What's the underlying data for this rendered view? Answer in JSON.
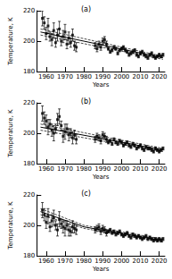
{
  "chart_data": [
    {
      "type": "scatter",
      "title": "(a)",
      "x_label": "Years",
      "y_label": "Temperature, K",
      "xlim": [
        1955,
        2023
      ],
      "xticks": [
        1960,
        1970,
        1980,
        1990,
        2000,
        2010,
        2020
      ],
      "ylim": [
        180,
        220
      ],
      "yticks": [
        180,
        200,
        220
      ],
      "series": [
        {
          "type": "scatter",
          "color": "#000000",
          "marker": "square",
          "x": [
            1958,
            1959,
            1960,
            1961,
            1962,
            1963,
            1964,
            1965,
            1966,
            1967,
            1968,
            1969,
            1970,
            1971,
            1972,
            1973,
            1974,
            1975,
            1976,
            1986,
            1987,
            1988,
            1989,
            1990,
            1991,
            1992,
            1993,
            1994,
            1995,
            1996,
            1997,
            1998,
            1999,
            2000,
            2001,
            2002,
            2003,
            2004,
            2005,
            2006,
            2007,
            2008,
            2009,
            2010,
            2011,
            2012,
            2013,
            2014,
            2015,
            2016,
            2017,
            2018,
            2019,
            2020,
            2021,
            2022
          ],
          "values": [
            215,
            212,
            205,
            210,
            203,
            201,
            207,
            199,
            204,
            208,
            200,
            203,
            206,
            198,
            202,
            199,
            204,
            197,
            196,
            197,
            195,
            198,
            196,
            200,
            201,
            198,
            195,
            193,
            194,
            196,
            195,
            192,
            194,
            195,
            196,
            194,
            193,
            191,
            192,
            193,
            194,
            191,
            190,
            192,
            193,
            191,
            190,
            189,
            191,
            192,
            190,
            189,
            190,
            191,
            190,
            191
          ],
          "errors": [
            5,
            4,
            4,
            5,
            3,
            4,
            5,
            3,
            4,
            5,
            3,
            4,
            5,
            3,
            4,
            3,
            4,
            3,
            3,
            2,
            2,
            2,
            2,
            2,
            2,
            2,
            1,
            1,
            1,
            1,
            1,
            1,
            1,
            1,
            1,
            1,
            1,
            1,
            1,
            1,
            1,
            1,
            1,
            1,
            1,
            1,
            1,
            1,
            1,
            1,
            1,
            1,
            1,
            1,
            1,
            1
          ]
        },
        {
          "type": "line",
          "color": "#000000",
          "line_style": "solid",
          "x": [
            1957,
            2022
          ],
          "values": [
            206,
            189
          ]
        },
        {
          "type": "line",
          "color": "#000000",
          "line_style": "dashed",
          "x": [
            1957,
            2022
          ],
          "values": [
            208,
            190
          ]
        },
        {
          "type": "line",
          "color": "#000000",
          "line_style": "dashed",
          "x": [
            1957,
            2022
          ],
          "values": [
            204,
            188
          ]
        }
      ]
    },
    {
      "type": "scatter",
      "title": "(b)",
      "x_label": "Years",
      "y_label": "Temperature, K",
      "xlim": [
        1955,
        2023
      ],
      "xticks": [
        1960,
        1970,
        1980,
        1990,
        2000,
        2010,
        2020
      ],
      "ylim": [
        180,
        220
      ],
      "yticks": [
        180,
        200,
        220
      ],
      "series": [
        {
          "type": "scatter",
          "color": "#000000",
          "marker": "square",
          "x": [
            1958,
            1959,
            1960,
            1961,
            1962,
            1963,
            1964,
            1965,
            1966,
            1967,
            1968,
            1969,
            1970,
            1971,
            1972,
            1973,
            1974,
            1975,
            1976,
            1986,
            1987,
            1988,
            1989,
            1990,
            1991,
            1992,
            1993,
            1994,
            1995,
            1996,
            1997,
            1998,
            1999,
            2000,
            2001,
            2002,
            2003,
            2004,
            2005,
            2006,
            2007,
            2008,
            2009,
            2010,
            2011,
            2012,
            2013,
            2014,
            2015,
            2016,
            2017,
            2018,
            2019,
            2020,
            2021,
            2022
          ],
          "values": [
            213,
            210,
            208,
            204,
            206,
            202,
            200,
            203,
            209,
            211,
            205,
            198,
            201,
            203,
            199,
            200,
            197,
            199,
            196,
            196,
            198,
            197,
            195,
            199,
            198,
            196,
            194,
            195,
            193,
            196,
            194,
            193,
            195,
            194,
            192,
            193,
            194,
            192,
            191,
            193,
            192,
            190,
            191,
            192,
            190,
            189,
            191,
            190,
            190,
            189,
            188,
            190,
            189,
            188,
            189,
            190
          ],
          "errors": [
            5,
            4,
            4,
            5,
            3,
            4,
            5,
            3,
            4,
            5,
            3,
            4,
            5,
            3,
            4,
            3,
            4,
            3,
            3,
            2,
            2,
            2,
            2,
            2,
            2,
            2,
            1,
            1,
            1,
            1,
            1,
            1,
            1,
            1,
            1,
            1,
            1,
            1,
            1,
            1,
            1,
            1,
            1,
            1,
            1,
            1,
            1,
            1,
            1,
            1,
            1,
            1,
            1,
            1,
            1,
            1
          ]
        },
        {
          "type": "line",
          "color": "#000000",
          "line_style": "solid",
          "x": [
            1957,
            2022
          ],
          "values": [
            204,
            189
          ]
        },
        {
          "type": "line",
          "color": "#000000",
          "line_style": "dashed",
          "x": [
            1957,
            2022
          ],
          "values": [
            206,
            190
          ]
        },
        {
          "type": "line",
          "color": "#000000",
          "line_style": "dashed",
          "x": [
            1957,
            2022
          ],
          "values": [
            202,
            188
          ]
        }
      ]
    },
    {
      "type": "scatter",
      "title": "(c)",
      "x_label": "Years",
      "y_label": "Temperature, K",
      "xlim": [
        1955,
        2023
      ],
      "xticks": [
        1960,
        1970,
        1980,
        1990,
        2000,
        2010,
        2020
      ],
      "ylim": [
        180,
        220
      ],
      "yticks": [
        180,
        200,
        220
      ],
      "series": [
        {
          "type": "scatter",
          "color": "#000000",
          "marker": "square",
          "x": [
            1958,
            1959,
            1960,
            1961,
            1962,
            1963,
            1964,
            1965,
            1966,
            1967,
            1968,
            1969,
            1970,
            1971,
            1972,
            1973,
            1974,
            1975,
            1976,
            1986,
            1987,
            1988,
            1989,
            1990,
            1991,
            1992,
            1993,
            1994,
            1995,
            1996,
            1997,
            1998,
            1999,
            2000,
            2001,
            2002,
            2003,
            2004,
            2005,
            2006,
            2007,
            2008,
            2009,
            2010,
            2011,
            2012,
            2013,
            2014,
            2015,
            2016,
            2017,
            2018,
            2019,
            2020,
            2021,
            2022
          ],
          "values": [
            210,
            207,
            202,
            206,
            199,
            203,
            205,
            200,
            197,
            204,
            201,
            199,
            198,
            200,
            197,
            196,
            199,
            198,
            197,
            197,
            198,
            199,
            196,
            198,
            197,
            195,
            196,
            197,
            195,
            196,
            194,
            195,
            196,
            194,
            193,
            194,
            195,
            193,
            192,
            194,
            193,
            192,
            193,
            192,
            191,
            192,
            193,
            191,
            192,
            191,
            190,
            191,
            190,
            191,
            190,
            191
          ],
          "errors": [
            5,
            4,
            4,
            5,
            3,
            4,
            5,
            3,
            4,
            5,
            3,
            4,
            5,
            3,
            4,
            3,
            4,
            3,
            3,
            2,
            2,
            2,
            2,
            2,
            2,
            2,
            1,
            1,
            1,
            1,
            1,
            1,
            1,
            1,
            1,
            1,
            1,
            1,
            1,
            1,
            1,
            1,
            1,
            1,
            1,
            1,
            1,
            1,
            1,
            1,
            1,
            1,
            1,
            1,
            1,
            1
          ]
        },
        {
          "type": "line",
          "color": "#000000",
          "line_style": "solid",
          "x": [
            1957,
            1980,
            2022
          ],
          "values": [
            209,
            199,
            190
          ]
        },
        {
          "type": "line",
          "color": "#000000",
          "line_style": "dashed",
          "x": [
            1957,
            1980,
            2022
          ],
          "values": [
            211,
            200,
            191
          ]
        },
        {
          "type": "line",
          "color": "#000000",
          "line_style": "dashed",
          "x": [
            1957,
            1980,
            2022
          ],
          "values": [
            207,
            198,
            189
          ]
        }
      ]
    }
  ]
}
